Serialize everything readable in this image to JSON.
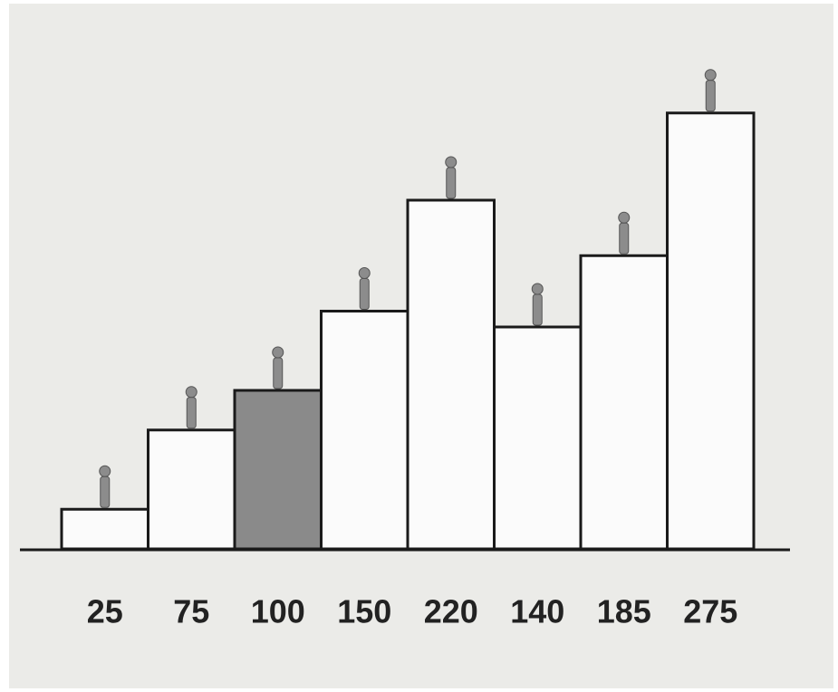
{
  "chart_data": {
    "type": "bar",
    "values": [
      25,
      75,
      100,
      150,
      220,
      140,
      185,
      275
    ],
    "colors": [
      "#fbfbfb",
      "#fbfbfb",
      "#8a8a8a",
      "#fbfbfb",
      "#fbfbfb",
      "#fbfbfb",
      "#fbfbfb",
      "#fbfbfb"
    ]
  }
}
